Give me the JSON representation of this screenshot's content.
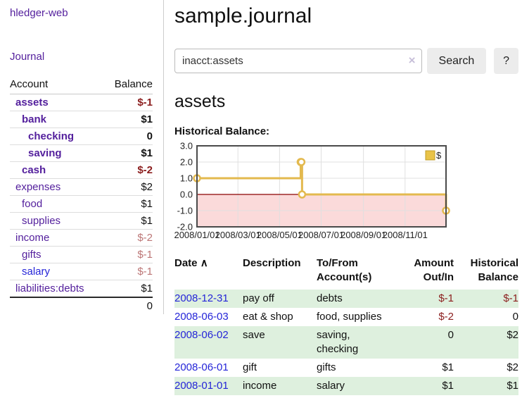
{
  "app": {
    "title": "hledger-web"
  },
  "sidebar": {
    "nav_journal": "Journal",
    "accounts": {
      "header_account": "Account",
      "header_balance": "Balance",
      "rows": [
        {
          "name": "assets",
          "indent": 0,
          "bold": true,
          "blue": false,
          "balance": "$-1",
          "balance_style": "negative-strong"
        },
        {
          "name": "bank",
          "indent": 1,
          "bold": true,
          "blue": false,
          "balance": "$1",
          "balance_style": "normal"
        },
        {
          "name": "checking",
          "indent": 2,
          "bold": true,
          "blue": false,
          "balance": "0",
          "balance_style": "normal"
        },
        {
          "name": "saving",
          "indent": 2,
          "bold": true,
          "blue": false,
          "balance": "$1",
          "balance_style": "normal"
        },
        {
          "name": "cash",
          "indent": 1,
          "bold": true,
          "blue": false,
          "balance": "$-2",
          "balance_style": "negative-strong"
        },
        {
          "name": "expenses",
          "indent": 0,
          "bold": false,
          "blue": false,
          "balance": "$2",
          "balance_style": "normal"
        },
        {
          "name": "food",
          "indent": 1,
          "bold": false,
          "blue": false,
          "balance": "$1",
          "balance_style": "normal"
        },
        {
          "name": "supplies",
          "indent": 1,
          "bold": false,
          "blue": false,
          "balance": "$1",
          "balance_style": "normal"
        },
        {
          "name": "income",
          "indent": 0,
          "bold": false,
          "blue": false,
          "balance": "$-2",
          "balance_style": "negative-soft"
        },
        {
          "name": "gifts",
          "indent": 1,
          "bold": false,
          "blue": false,
          "balance": "$-1",
          "balance_style": "negative-soft"
        },
        {
          "name": "salary",
          "indent": 1,
          "bold": false,
          "blue": true,
          "balance": "$-1",
          "balance_style": "negative-soft"
        },
        {
          "name": "liabilities:debts",
          "indent": 0,
          "bold": false,
          "blue": false,
          "balance": "$1",
          "balance_style": "normal"
        }
      ],
      "total": "0"
    }
  },
  "main": {
    "title": "sample.journal",
    "search": {
      "value": "inacct:assets",
      "clear_icon": "×",
      "search_button": "Search",
      "help_button": "?"
    },
    "account_heading": "assets",
    "chart_title": "Historical Balance:"
  },
  "chart_data": {
    "type": "line",
    "title": "Historical Balance:",
    "step": true,
    "x_start": "2008-01-01",
    "x_end": "2008-12-31",
    "ylim": [
      -2,
      3
    ],
    "y_ticks": [
      "3.0",
      "2.0",
      "1.0",
      "0.0",
      "-1.0",
      "-2.0"
    ],
    "x_tick_dates": [
      "2008-01-01",
      "2008-03-01",
      "2008-05-01",
      "2008-07-01",
      "2008-09-01",
      "2008-11-01"
    ],
    "x_tick_labels": [
      "2008/01/01",
      "2008/03/01",
      "2008/05/01",
      "2008/07/01",
      "2008/09/01",
      "2008/11/01"
    ],
    "legend": [
      {
        "label": "$",
        "fill": "#e9c348",
        "border": "#bf9b26"
      }
    ],
    "series": [
      {
        "name": "$",
        "color": "#e3b94e",
        "points": [
          [
            "2008-01-01",
            1
          ],
          [
            "2008-06-01",
            2
          ],
          [
            "2008-06-02",
            2
          ],
          [
            "2008-06-03",
            0
          ],
          [
            "2008-12-31",
            -1
          ]
        ]
      }
    ],
    "grid": true,
    "legend_position": "top-right",
    "negative_fill": "#fbdada",
    "zero_line_color": "#8b0000",
    "plot_border_color": "#4a4a4a",
    "grid_color": "#e0e0e0"
  },
  "transactions": {
    "sort_icon": "∧",
    "headers": {
      "date": "Date",
      "description": "Description",
      "accounts": "To/From Account(s)",
      "amount": "Amount Out/In",
      "balance": "Historical Balance"
    },
    "rows": [
      {
        "date": "2008-12-31",
        "description": "pay off",
        "accounts": "debts",
        "amount": "$-1",
        "amount_negative": true,
        "balance": "$-1",
        "balance_negative": true
      },
      {
        "date": "2008-06-03",
        "description": "eat & shop",
        "accounts": "food, supplies",
        "amount": "$-2",
        "amount_negative": true,
        "balance": "0",
        "balance_negative": false
      },
      {
        "date": "2008-06-02",
        "description": "save",
        "accounts": "saving, checking",
        "amount": "0",
        "amount_negative": false,
        "balance": "$2",
        "balance_negative": false
      },
      {
        "date": "2008-06-01",
        "description": "gift",
        "accounts": "gifts",
        "amount": "$1",
        "amount_negative": false,
        "balance": "$2",
        "balance_negative": false
      },
      {
        "date": "2008-01-01",
        "description": "income",
        "accounts": "salary",
        "amount": "$1",
        "amount_negative": false,
        "balance": "$1",
        "balance_negative": false
      }
    ]
  },
  "colors": {
    "link_purple": "#54209d",
    "link_blue": "#2525d8",
    "negative_strong": "#8b1d1d",
    "negative_soft": "#bc7676",
    "row_stripe_green": "#def0de",
    "series_gold": "#e3b94e",
    "negative_region_pink": "#fbdada"
  }
}
